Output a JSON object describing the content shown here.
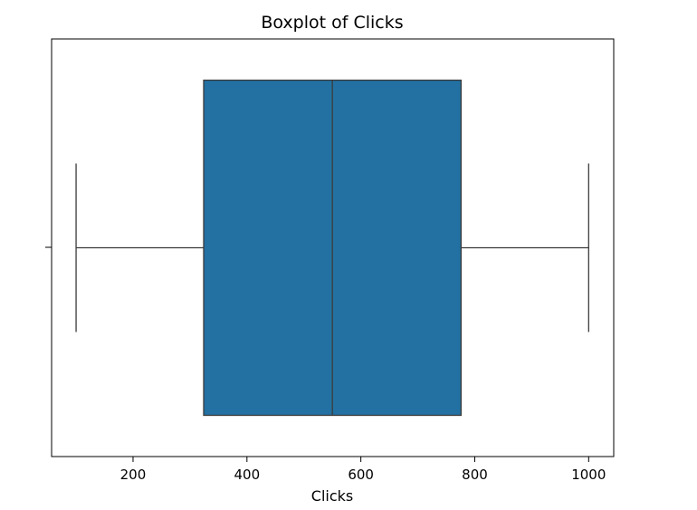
{
  "chart_data": {
    "type": "boxplot",
    "title": "Boxplot of Clicks",
    "xlabel": "Clicks",
    "ylabel": "",
    "orientation": "horizontal",
    "xlim": [
      57,
      1044
    ],
    "xticks": [
      200,
      400,
      600,
      800,
      1000
    ],
    "grid": false,
    "series": [
      {
        "min": 100,
        "q1": 324,
        "median": 550,
        "q3": 776,
        "max": 1000,
        "outliers": []
      }
    ],
    "colors": {
      "box_fill": "#2271a2",
      "line": "#3b3b3b"
    }
  }
}
